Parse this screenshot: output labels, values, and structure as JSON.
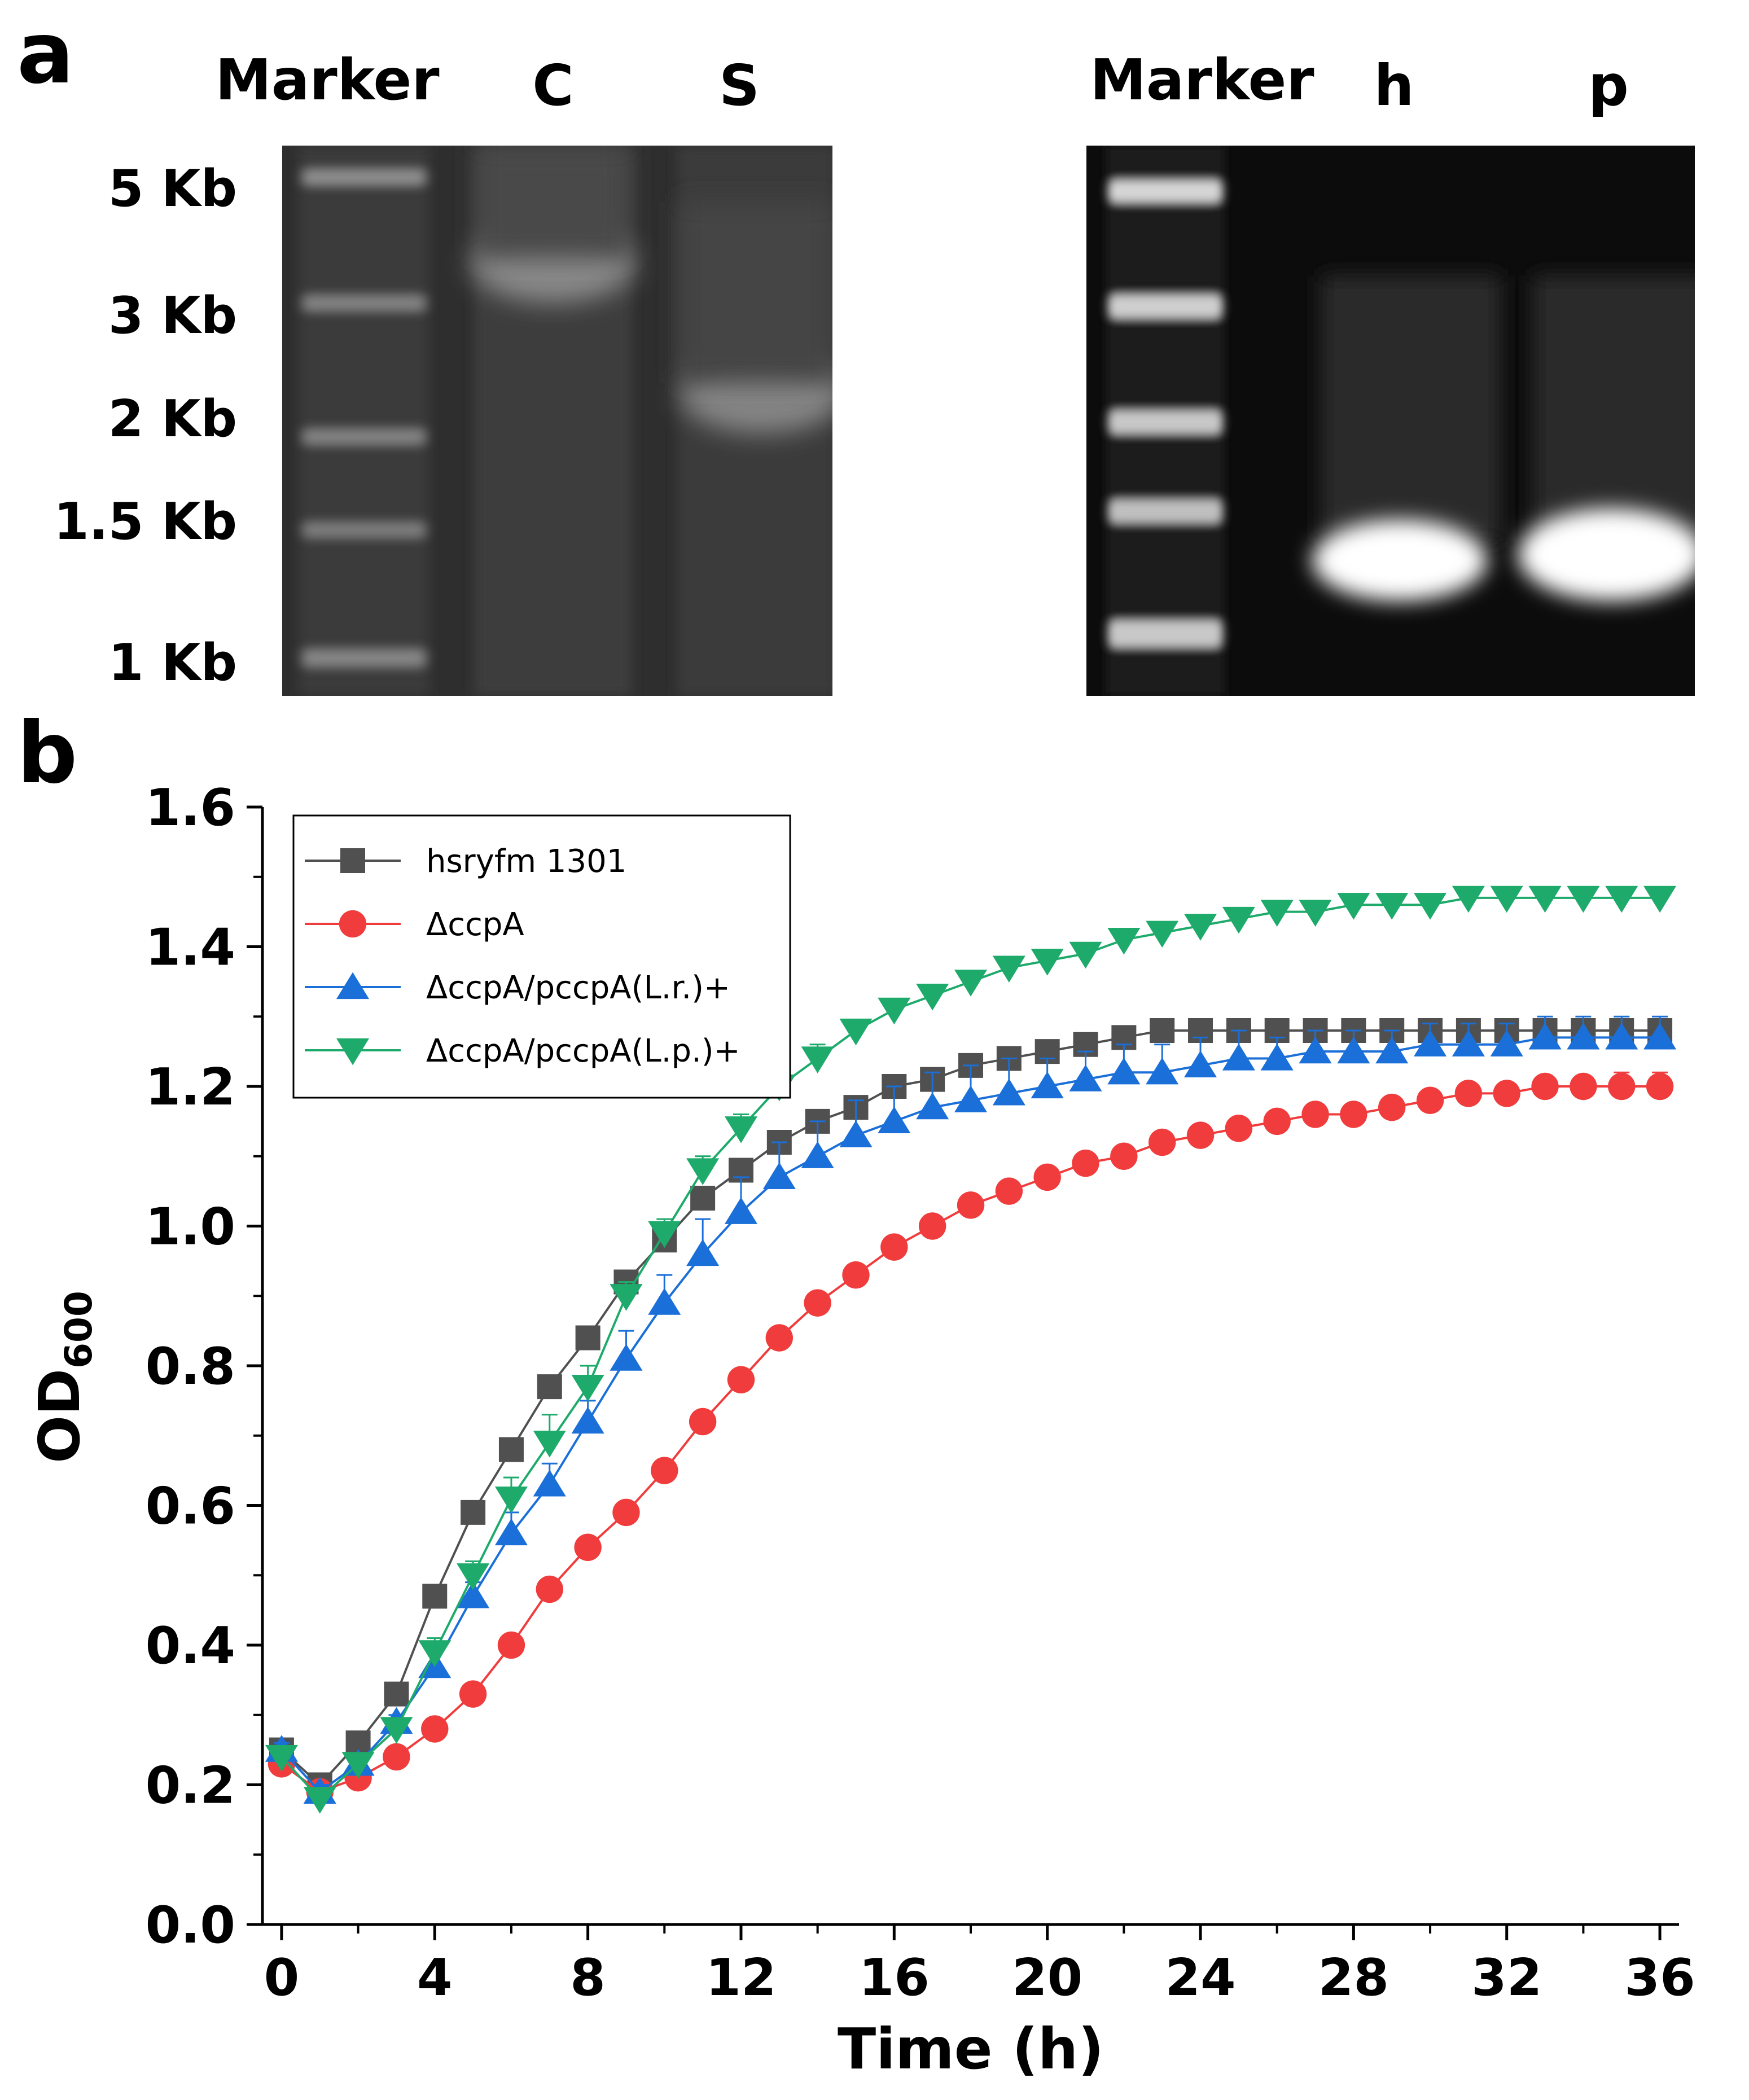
{
  "panel_a": {
    "letter": "a",
    "gel_left": {
      "lanes": [
        "Marker",
        "C",
        "S"
      ],
      "marker_sizes": [
        "5 Kb",
        "3 Kb",
        "2 Kb",
        "1.5 Kb",
        "1 Kb"
      ]
    },
    "gel_right": {
      "lanes": [
        "Marker",
        "h",
        "p"
      ]
    }
  },
  "panel_b": {
    "letter": "b"
  },
  "chart_data": {
    "type": "line",
    "title": "",
    "xlabel": "Time (h)",
    "ylabel_main": "OD",
    "ylabel_sub": "600",
    "xlim": [
      -0.5,
      36.5
    ],
    "ylim": [
      0,
      1.6
    ],
    "xticks": [
      0,
      4,
      8,
      12,
      16,
      20,
      24,
      28,
      32,
      36
    ],
    "yticks": [
      0.0,
      0.2,
      0.4,
      0.6,
      0.8,
      1.0,
      1.2,
      1.4,
      1.6
    ],
    "ytick_labels": [
      "0.0",
      "0.2",
      "0.4",
      "0.6",
      "0.8",
      "1.0",
      "1.2",
      "1.4",
      "1.6"
    ],
    "grid": false,
    "legend_position": "top-left",
    "x": [
      0,
      1,
      2,
      3,
      4,
      5,
      6,
      7,
      8,
      9,
      10,
      11,
      12,
      13,
      14,
      15,
      16,
      17,
      18,
      19,
      20,
      21,
      22,
      23,
      24,
      25,
      26,
      27,
      28,
      29,
      30,
      31,
      32,
      33,
      34,
      35,
      36
    ],
    "series": [
      {
        "name": "hsryfm 1301",
        "color": "#505050",
        "marker": "square",
        "values": [
          0.25,
          0.2,
          0.26,
          0.33,
          0.47,
          0.59,
          0.68,
          0.77,
          0.84,
          0.92,
          0.98,
          1.04,
          1.08,
          1.12,
          1.15,
          1.17,
          1.2,
          1.21,
          1.23,
          1.24,
          1.25,
          1.26,
          1.27,
          1.28,
          1.28,
          1.28,
          1.28,
          1.28,
          1.28,
          1.28,
          1.28,
          1.28,
          1.28,
          1.28,
          1.28,
          1.28,
          1.28
        ],
        "errors": [
          0.01,
          0.01,
          0.01,
          0.01,
          0.01,
          0.01,
          0.01,
          0.01,
          0.01,
          0.01,
          0.01,
          0.01,
          0.01,
          0.01,
          0.01,
          0.01,
          0.01,
          0.01,
          0.01,
          0.01,
          0.01,
          0.01,
          0.01,
          0.01,
          0.01,
          0.01,
          0.01,
          0.01,
          0.01,
          0.01,
          0.01,
          0.01,
          0.01,
          0.01,
          0.01,
          0.01,
          0.01
        ]
      },
      {
        "name": "ΔccpA",
        "color": "#f03c3c",
        "marker": "circle",
        "values": [
          0.23,
          0.19,
          0.21,
          0.24,
          0.28,
          0.33,
          0.4,
          0.48,
          0.54,
          0.59,
          0.65,
          0.72,
          0.78,
          0.84,
          0.89,
          0.93,
          0.97,
          1.0,
          1.03,
          1.05,
          1.07,
          1.09,
          1.1,
          1.12,
          1.13,
          1.14,
          1.15,
          1.16,
          1.16,
          1.17,
          1.18,
          1.19,
          1.19,
          1.2,
          1.2,
          1.2,
          1.2
        ],
        "errors": [
          0.01,
          0.01,
          0.01,
          0.01,
          0.01,
          0.01,
          0.01,
          0.01,
          0.01,
          0.01,
          0.01,
          0.01,
          0.01,
          0.01,
          0.01,
          0.01,
          0.01,
          0.01,
          0.01,
          0.01,
          0.01,
          0.01,
          0.01,
          0.01,
          0.01,
          0.01,
          0.01,
          0.01,
          0.01,
          0.01,
          0.01,
          0.01,
          0.01,
          0.01,
          0.01,
          0.02,
          0.02
        ]
      },
      {
        "name": "ΔccpA/pccpA(L.r.)+",
        "color": "#1a6fd8",
        "marker": "triangle-up",
        "values": [
          0.25,
          0.19,
          0.23,
          0.29,
          0.37,
          0.47,
          0.56,
          0.63,
          0.72,
          0.81,
          0.89,
          0.96,
          1.02,
          1.07,
          1.1,
          1.13,
          1.15,
          1.17,
          1.18,
          1.19,
          1.2,
          1.21,
          1.22,
          1.22,
          1.23,
          1.24,
          1.24,
          1.25,
          1.25,
          1.25,
          1.26,
          1.26,
          1.26,
          1.27,
          1.27,
          1.27,
          1.27
        ],
        "errors": [
          0.01,
          0.01,
          0.01,
          0.01,
          0.02,
          0.02,
          0.03,
          0.03,
          0.03,
          0.04,
          0.04,
          0.05,
          0.05,
          0.05,
          0.05,
          0.05,
          0.05,
          0.05,
          0.05,
          0.05,
          0.04,
          0.04,
          0.04,
          0.04,
          0.04,
          0.04,
          0.03,
          0.03,
          0.03,
          0.03,
          0.03,
          0.03,
          0.03,
          0.03,
          0.03,
          0.03,
          0.03
        ]
      },
      {
        "name": "ΔccpA/pccpA(L.p.)+",
        "color": "#1daa6b",
        "marker": "triangle-down",
        "values": [
          0.24,
          0.18,
          0.23,
          0.28,
          0.39,
          0.5,
          0.61,
          0.69,
          0.77,
          0.9,
          0.99,
          1.08,
          1.14,
          1.2,
          1.24,
          1.28,
          1.31,
          1.33,
          1.35,
          1.37,
          1.38,
          1.39,
          1.41,
          1.42,
          1.43,
          1.44,
          1.45,
          1.45,
          1.46,
          1.46,
          1.46,
          1.47,
          1.47,
          1.47,
          1.47,
          1.47,
          1.47
        ],
        "errors": [
          0.01,
          0.01,
          0.01,
          0.01,
          0.02,
          0.02,
          0.03,
          0.04,
          0.03,
          0.02,
          0.02,
          0.02,
          0.02,
          0.02,
          0.02,
          0.01,
          0.01,
          0.01,
          0.01,
          0.01,
          0.01,
          0.01,
          0.01,
          0.01,
          0.01,
          0.01,
          0.01,
          0.01,
          0.01,
          0.01,
          0.01,
          0.01,
          0.01,
          0.01,
          0.01,
          0.01,
          0.01
        ]
      }
    ]
  }
}
